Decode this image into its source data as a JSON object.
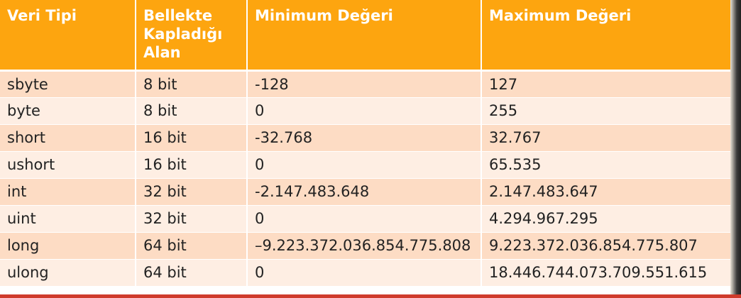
{
  "table": {
    "headers": [
      "Veri Tipi",
      "Bellekte Kapladığı Alan",
      "Minimum Değeri",
      "Maximum Değeri"
    ],
    "rows": [
      [
        "sbyte",
        "8 bit",
        "-128",
        "127"
      ],
      [
        "byte",
        "8 bit",
        "0",
        "255"
      ],
      [
        "short",
        "16 bit",
        "-32.768",
        "32.767"
      ],
      [
        "ushort",
        "16 bit",
        "0",
        "65.535"
      ],
      [
        "int",
        "32 bit",
        "-2.147.483.648",
        "2.147.483.647"
      ],
      [
        "uint",
        "32 bit",
        "0",
        "4.294.967.295"
      ],
      [
        "long",
        "64 bit",
        "–9.223.372.036.854.775.808",
        "9.223.372.036.854.775.807"
      ],
      [
        "ulong",
        "64 bit",
        "0",
        "18.446.744.073.709.551.615"
      ]
    ]
  },
  "colors": {
    "header_background": "#fda50f",
    "header_text": "#ffffff",
    "row_odd": "#fddcc4",
    "row_even": "#feeee3",
    "bottom_accent": "#cf3b2c"
  }
}
